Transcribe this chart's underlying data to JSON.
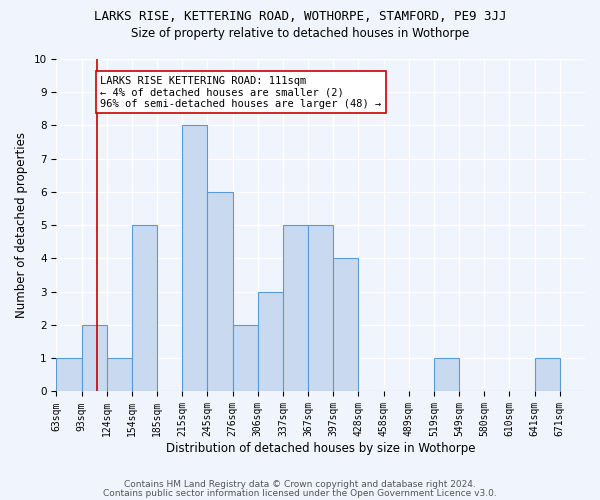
{
  "title": "LARKS RISE, KETTERING ROAD, WOTHORPE, STAMFORD, PE9 3JJ",
  "subtitle": "Size of property relative to detached houses in Wothorpe",
  "xlabel": "Distribution of detached houses by size in Wothorpe",
  "ylabel": "Number of detached properties",
  "bin_labels": [
    "63sqm",
    "93sqm",
    "124sqm",
    "154sqm",
    "185sqm",
    "215sqm",
    "245sqm",
    "276sqm",
    "306sqm",
    "337sqm",
    "367sqm",
    "397sqm",
    "428sqm",
    "458sqm",
    "489sqm",
    "519sqm",
    "549sqm",
    "580sqm",
    "610sqm",
    "641sqm",
    "671sqm"
  ],
  "bar_heights": [
    1,
    2,
    1,
    5,
    0,
    8,
    6,
    2,
    3,
    5,
    5,
    4,
    0,
    0,
    0,
    1,
    0,
    0,
    0,
    1,
    0
  ],
  "bar_color": "#c9d9f0",
  "bar_edge_color": "#5b9bd5",
  "vline_x_idx": 1.6,
  "vline_color": "#cc0000",
  "annotation_text": "LARKS RISE KETTERING ROAD: 111sqm\n← 4% of detached houses are smaller (2)\n96% of semi-detached houses are larger (48) →",
  "annotation_box_color": "white",
  "annotation_box_edge_color": "#cc0000",
  "ylim": [
    0,
    10
  ],
  "yticks": [
    0,
    1,
    2,
    3,
    4,
    5,
    6,
    7,
    8,
    9,
    10
  ],
  "footer_line1": "Contains HM Land Registry data © Crown copyright and database right 2024.",
  "footer_line2": "Contains public sector information licensed under the Open Government Licence v3.0.",
  "background_color": "#f0f4fc",
  "grid_color": "white",
  "title_fontsize": 9,
  "subtitle_fontsize": 8.5,
  "axis_label_fontsize": 8.5,
  "tick_fontsize": 7,
  "annotation_fontsize": 7.5,
  "footer_fontsize": 6.5
}
